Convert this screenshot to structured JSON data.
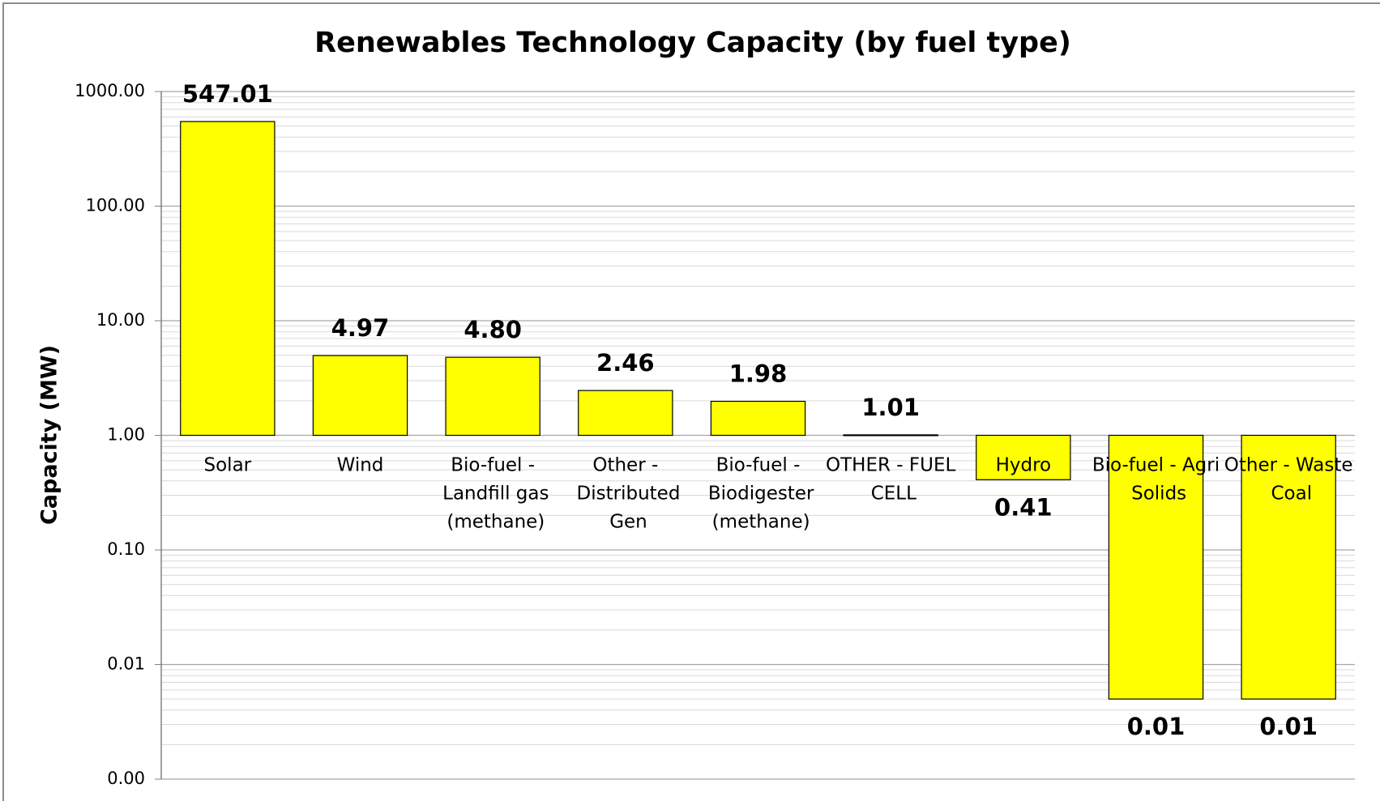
{
  "chart_data": {
    "type": "bar",
    "title": "Renewables Technology Capacity (by fuel type)",
    "y_label": "Capacity (MW)",
    "categories": [
      "Solar",
      "Wind",
      "Bio-fuel - Landfill gas (methane)",
      "Other - Distributed Gen",
      "Bio-fuel - Biodigester (methane)",
      "OTHER - FUEL CELL",
      "Hydro",
      "Bio-fuel - Agri Solids",
      "Other - Waste Coal"
    ],
    "values": [
      547.01,
      4.97,
      4.8,
      2.46,
      1.98,
      1.01,
      0.41,
      0.005,
      0.005
    ],
    "value_labels": [
      "547.01",
      "4.97",
      "4.80",
      "2.46",
      "1.98",
      "1.01",
      "0.41",
      "0.01",
      "0.01"
    ],
    "color": "#ffff00",
    "log_scale": true,
    "ylim": [
      0.001,
      1000
    ],
    "yticks": [
      {
        "value": 1000,
        "label": "1000.00"
      },
      {
        "value": 100,
        "label": "100.00"
      },
      {
        "value": 10,
        "label": "10.00"
      },
      {
        "value": 1,
        "label": "1.00"
      },
      {
        "value": 0.1,
        "label": "0.10"
      },
      {
        "value": 0.01,
        "label": "0.01"
      },
      {
        "value": 0.001,
        "label": "0.00"
      }
    ],
    "grid": true,
    "minor_grid": true
  }
}
